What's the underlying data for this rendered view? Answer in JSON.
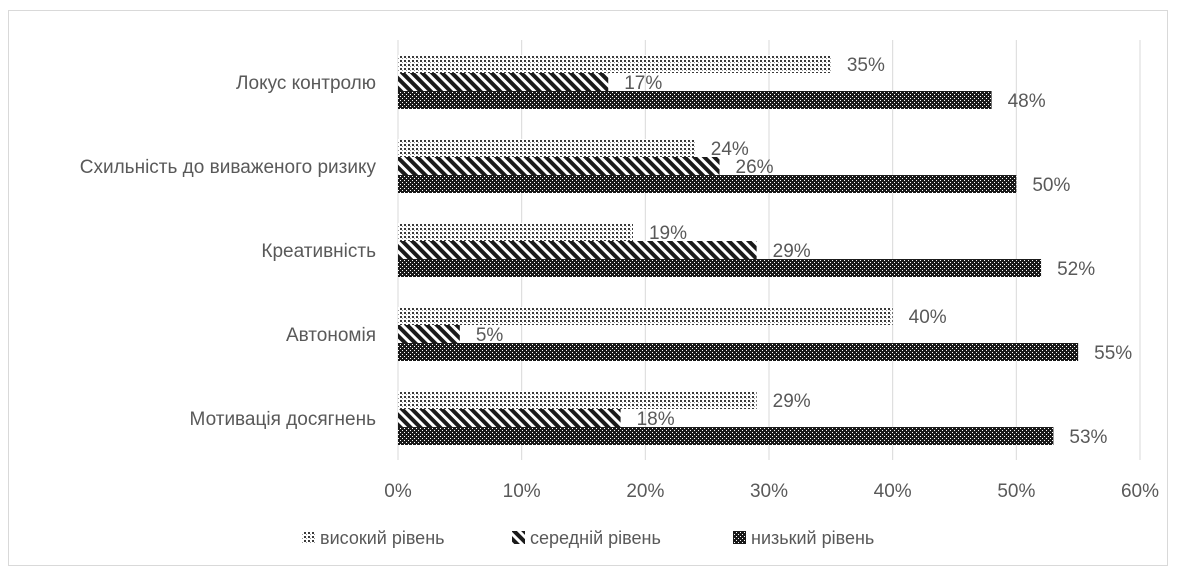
{
  "chart_data": {
    "type": "bar",
    "orientation": "horizontal",
    "categories": [
      "Локус контролю",
      "Схильність до  виваженого ризику",
      "Креативність",
      "Автономія",
      "Мотивація досягнень"
    ],
    "series": [
      {
        "name": "високий рівень",
        "pattern": "dots",
        "values": [
          35,
          24,
          19,
          40,
          29
        ],
        "labels": [
          "35%",
          "24%",
          "19%",
          "40%",
          "29%"
        ]
      },
      {
        "name": "середній рівень",
        "pattern": "diagonal-stripes",
        "values": [
          17,
          26,
          29,
          5,
          18
        ],
        "labels": [
          "17%",
          "26%",
          "29%",
          "5%",
          "18%"
        ]
      },
      {
        "name": "низький рівень",
        "pattern": "checkerboard",
        "values": [
          48,
          50,
          52,
          55,
          53
        ],
        "labels": [
          "48%",
          "50%",
          "52%",
          "55%",
          "53%"
        ]
      }
    ],
    "xlim": [
      0,
      60
    ],
    "xticks": [
      0,
      10,
      20,
      30,
      40,
      50,
      60
    ],
    "xtick_labels": [
      "0%",
      "10%",
      "20%",
      "30%",
      "40%",
      "50%",
      "60%"
    ],
    "grid": true,
    "legend_position": "bottom",
    "colors": {
      "pattern_ink": "#1a1a1a",
      "text": "#595959",
      "grid": "#d9d9d9"
    }
  }
}
